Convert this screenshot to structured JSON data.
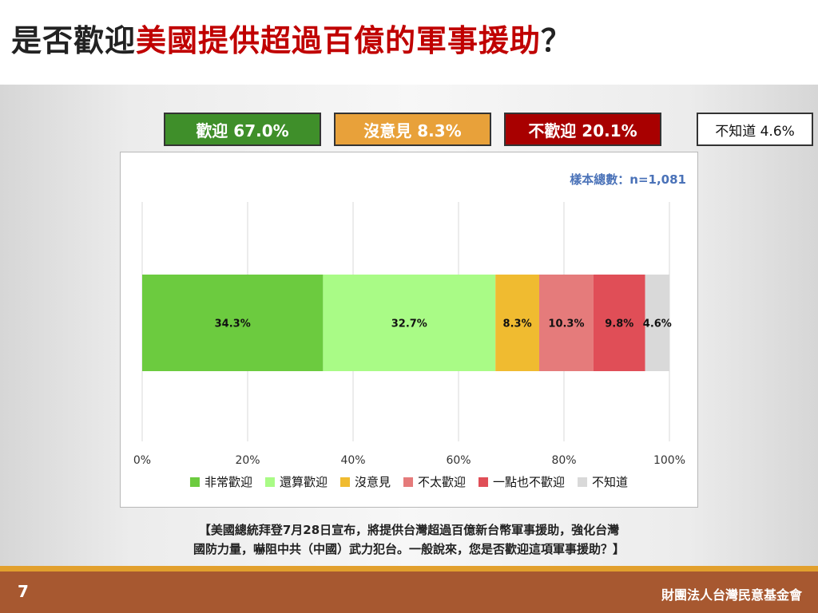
{
  "title": {
    "part1": "是否歡迎",
    "part2": "美國提供超過百億的軍事援助",
    "part3": "？"
  },
  "colors": {
    "title_accent": "#c00000",
    "welcome": "#3f8f2a",
    "neutral": "#e8a13a",
    "unwelcome": "#a80000",
    "footer": "#a75830",
    "footer_accent": "#e2a02d"
  },
  "summary": {
    "welcome": "歡迎 67.0%",
    "neutral": "沒意見 8.3%",
    "unwelcome": "不歡迎 20.1%",
    "unknown": "不知道 4.6%"
  },
  "sample_size": "樣本總數：n=1,081",
  "chart_data": {
    "type": "bar",
    "orientation": "horizontal-stacked",
    "xlim": [
      0,
      100
    ],
    "x_ticks": [
      "0%",
      "20%",
      "40%",
      "60%",
      "80%",
      "100%"
    ],
    "grid": true,
    "legend_position": "bottom",
    "series": [
      {
        "name": "非常歡迎",
        "value": 34.3,
        "label": "34.3%",
        "color": "#6ccb3f"
      },
      {
        "name": "還算歡迎",
        "value": 32.7,
        "label": "32.7%",
        "color": "#a9fb86"
      },
      {
        "name": "沒意見",
        "value": 8.3,
        "label": "8.3%",
        "color": "#f0bb30"
      },
      {
        "name": "不太歡迎",
        "value": 10.3,
        "label": "10.3%",
        "color": "#e57b7b"
      },
      {
        "name": "一點也不歡迎",
        "value": 9.8,
        "label": "9.8%",
        "color": "#e04e57"
      },
      {
        "name": "不知道",
        "value": 4.6,
        "label": "4.6%",
        "color": "#d9d9d9"
      }
    ]
  },
  "question": {
    "line1": "【美國總統拜登7月28日宣布，將提供台灣超過百億新台幣軍事援助，強化台灣",
    "line2": "國防力量，嚇阻中共（中國）武力犯台。一般說來，您是否歡迎這項軍事援助？】"
  },
  "footer": {
    "page_number": "7",
    "organization": "財團法人台灣民意基金會"
  }
}
